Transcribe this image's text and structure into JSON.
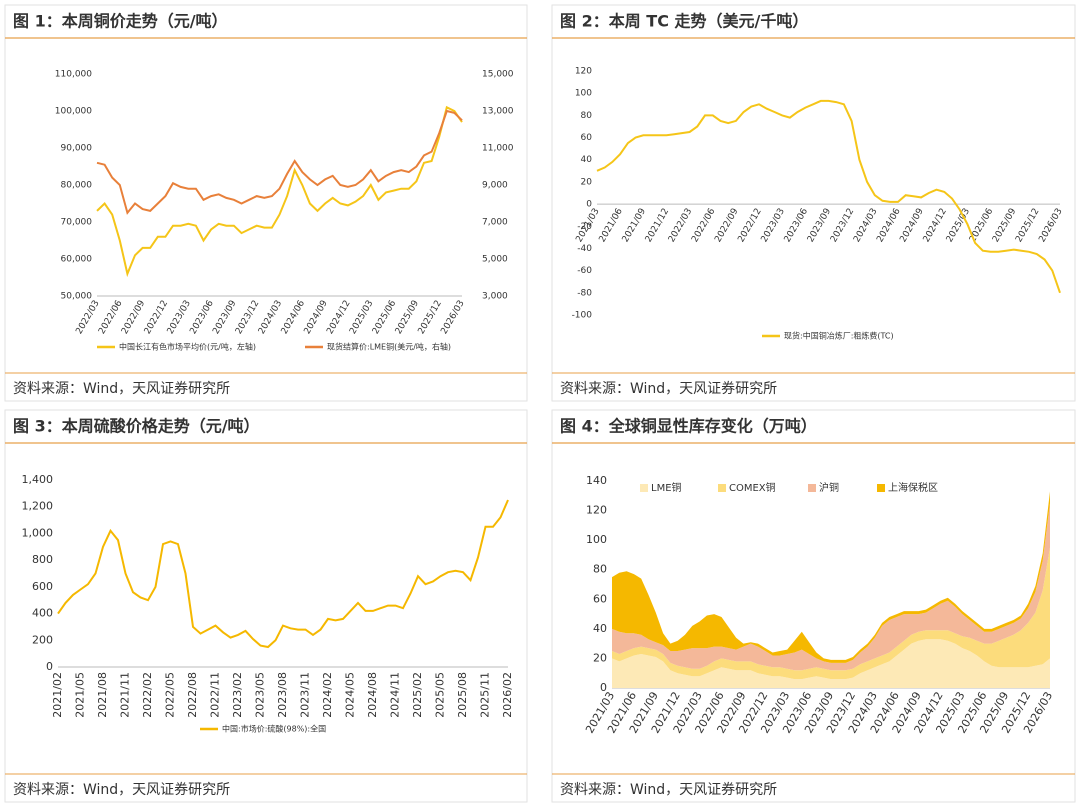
{
  "chart_data": [
    {
      "type": "line",
      "title": "图 1：本周铜价走势（元/吨）",
      "source": "资料来源：Wind，天风证券研究所",
      "categories": [
        "2022/03",
        null,
        null,
        "2022/06",
        null,
        null,
        "2022/09",
        null,
        null,
        "2022/12",
        null,
        null,
        "2023/03",
        null,
        null,
        "2023/06",
        null,
        null,
        "2023/09",
        null,
        null,
        "2023/12",
        null,
        null,
        "2024/03",
        null,
        null,
        "2024/06",
        null,
        null,
        "2024/09",
        null,
        null,
        "2024/12",
        null,
        null,
        "2025/03",
        null,
        null,
        "2025/06",
        null,
        null,
        "2025/09",
        null,
        null,
        "2025/12",
        null,
        null,
        "2026/03"
      ],
      "series": [
        {
          "name": "中国长江有色市场平均价(元/吨，左轴)",
          "color": "#f5c518",
          "values": [
            73000,
            75000,
            72000,
            65000,
            56000,
            61000,
            63000,
            63000,
            66000,
            66000,
            69000,
            69000,
            69500,
            69000,
            65000,
            68000,
            69500,
            69000,
            69000,
            67000,
            68000,
            69000,
            68500,
            68500,
            72000,
            77000,
            84000,
            80000,
            75000,
            73000,
            75000,
            76500,
            75000,
            74500,
            75500,
            77000,
            80000,
            76000,
            78000,
            78500,
            79000,
            79000,
            81000,
            86000,
            86500,
            93000,
            101000,
            100000,
            97000
          ]
        },
        {
          "name": "现货结算价:LME铜(美元/吨，右轴)",
          "color": "#e8803a",
          "axis": "y2",
          "values": [
            10200,
            10100,
            9400,
            9000,
            7500,
            8000,
            7700,
            7600,
            8000,
            8400,
            9100,
            8900,
            8800,
            8800,
            8200,
            8400,
            8500,
            8300,
            8200,
            8000,
            8200,
            8400,
            8300,
            8400,
            8800,
            9600,
            10300,
            9700,
            9300,
            9000,
            9300,
            9500,
            9000,
            8900,
            9000,
            9300,
            9800,
            9200,
            9500,
            9700,
            9800,
            9700,
            10000,
            10600,
            10800,
            11800,
            13000,
            12900,
            12500
          ]
        }
      ],
      "ylim": [
        50000,
        110000
      ],
      "yticks": [
        {
          "value": 50000,
          "label": "50,000"
        },
        {
          "value": 60000,
          "label": "60,000"
        },
        {
          "value": 70000,
          "label": "70,000"
        },
        {
          "value": 80000,
          "label": "80,000"
        },
        {
          "value": 90000,
          "label": "90,000"
        },
        {
          "value": 100000,
          "label": "100,000"
        },
        {
          "value": 110000,
          "label": "110,000"
        }
      ],
      "y2lim": [
        3000,
        15000
      ],
      "y2ticks": [
        {
          "value": 3000,
          "label": "3,000"
        },
        {
          "value": 5000,
          "label": "5,000"
        },
        {
          "value": 7000,
          "label": "7,000"
        },
        {
          "value": 9000,
          "label": "9,000"
        },
        {
          "value": 11000,
          "label": "11,000"
        },
        {
          "value": 13000,
          "label": "13,000"
        },
        {
          "value": 15000,
          "label": "15,000"
        }
      ],
      "grid": false
    },
    {
      "type": "line",
      "title": "图 2：本周 TC 走势（美元/千吨）",
      "source": "资料来源：Wind，天风证券研究所",
      "categories": [
        "2021/03",
        null,
        null,
        "2021/06",
        null,
        null,
        "2021/09",
        null,
        null,
        "2021/12",
        null,
        null,
        "2022/03",
        null,
        null,
        "2022/06",
        null,
        null,
        "2022/09",
        null,
        null,
        "2022/12",
        null,
        null,
        "2023/03",
        null,
        null,
        "2023/06",
        null,
        null,
        "2023/09",
        null,
        null,
        "2023/12",
        null,
        null,
        "2024/03",
        null,
        null,
        "2024/06",
        null,
        null,
        "2024/09",
        null,
        null,
        "2024/12",
        null,
        null,
        "2025/03",
        null,
        null,
        "2025/06",
        null,
        null,
        "2025/09",
        null,
        null,
        "2025/12",
        null,
        null,
        "2026/03"
      ],
      "series": [
        {
          "name": "现货:中国铜冶炼厂:粗炼费(TC)",
          "color": "#f5c518",
          "values": [
            30,
            33,
            38,
            45,
            55,
            60,
            62,
            62,
            62,
            62,
            63,
            64,
            65,
            70,
            80,
            80,
            75,
            73,
            75,
            83,
            88,
            90,
            86,
            83,
            80,
            78,
            83,
            87,
            90,
            93,
            93,
            92,
            90,
            75,
            40,
            20,
            8,
            3,
            2,
            2,
            8,
            7,
            6,
            10,
            13,
            11,
            5,
            -5,
            -18,
            -35,
            -42,
            -43,
            -43,
            -42,
            -41,
            -42,
            -43,
            -45,
            -50,
            -60,
            -80
          ]
        }
      ],
      "ylim": [
        -100,
        120
      ],
      "yticks": [
        -100,
        -80,
        -60,
        -40,
        -20,
        0,
        20,
        40,
        60,
        80,
        100,
        120
      ],
      "grid": false
    },
    {
      "type": "line",
      "title": "图 3：本周硫酸价格走势（元/吨）",
      "source": "资料来源：Wind，天风证券研究所",
      "categories": [
        "2021/02",
        null,
        null,
        "2021/05",
        null,
        null,
        "2021/08",
        null,
        null,
        "2021/11",
        null,
        null,
        "2022/02",
        null,
        null,
        "2022/05",
        null,
        null,
        "2022/08",
        null,
        null,
        "2022/11",
        null,
        null,
        "2023/02",
        null,
        null,
        "2023/05",
        null,
        null,
        "2023/08",
        null,
        null,
        "2023/11",
        null,
        null,
        "2024/02",
        null,
        null,
        "2024/05",
        null,
        null,
        "2024/08",
        null,
        null,
        "2024/11",
        null,
        null,
        "2025/02",
        null,
        null,
        "2025/05",
        null,
        null,
        "2025/08",
        null,
        null,
        "2025/11",
        null,
        null,
        "2026/02"
      ],
      "series": [
        {
          "name": "中国:市场价:硫酸(98%):全国",
          "color": "#f5b800",
          "values": [
            400,
            480,
            540,
            580,
            620,
            700,
            900,
            1020,
            950,
            700,
            560,
            520,
            500,
            600,
            920,
            940,
            920,
            700,
            300,
            250,
            280,
            310,
            260,
            220,
            240,
            270,
            210,
            160,
            150,
            200,
            310,
            290,
            280,
            280,
            240,
            280,
            360,
            350,
            360,
            420,
            480,
            420,
            420,
            440,
            460,
            460,
            440,
            550,
            680,
            620,
            640,
            680,
            710,
            720,
            710,
            650,
            820,
            1050,
            1050,
            1120,
            1250
          ]
        }
      ],
      "ylim": [
        0,
        1400
      ],
      "yticks": [
        0,
        200,
        400,
        600,
        800,
        {
          "value": 1000,
          "label": "1,000"
        },
        {
          "value": 1200,
          "label": "1,200"
        },
        {
          "value": 1400,
          "label": "1,400"
        }
      ],
      "grid": false
    },
    {
      "type": "area",
      "title": "图 4：全球铜显性库存变化（万吨）",
      "source": "资料来源：Wind，天风证券研究所",
      "categories": [
        "2021/03",
        null,
        null,
        "2021/06",
        null,
        null,
        "2021/09",
        null,
        null,
        "2021/12",
        null,
        null,
        "2022/03",
        null,
        null,
        "2022/06",
        null,
        null,
        "2022/09",
        null,
        null,
        "2022/12",
        null,
        null,
        "2023/03",
        null,
        null,
        "2023/06",
        null,
        null,
        "2023/09",
        null,
        null,
        "2023/12",
        null,
        null,
        "2024/03",
        null,
        null,
        "2024/06",
        null,
        null,
        "2024/09",
        null,
        null,
        "2024/12",
        null,
        null,
        "2025/03",
        null,
        null,
        "2025/06",
        null,
        null,
        "2025/09",
        null,
        null,
        "2025/12",
        null,
        null,
        "2026/03"
      ],
      "series": [
        {
          "name": "LME铜",
          "color": "#fde9b6",
          "values": [
            20,
            18,
            20,
            22,
            23,
            22,
            21,
            18,
            12,
            10,
            9,
            8,
            8,
            10,
            12,
            14,
            13,
            12,
            12,
            12,
            10,
            9,
            8,
            8,
            7,
            6,
            6,
            7,
            8,
            7,
            6,
            6,
            6,
            7,
            10,
            12,
            14,
            16,
            18,
            22,
            26,
            30,
            32,
            33,
            33,
            33,
            32,
            30,
            27,
            25,
            22,
            18,
            15,
            14,
            14,
            14,
            14,
            14,
            15,
            16,
            20
          ]
        },
        {
          "name": "COMEX铜",
          "color": "#fcdc7c",
          "values": [
            5,
            5,
            5,
            5,
            5,
            5,
            5,
            5,
            5,
            5,
            5,
            5,
            5,
            5,
            6,
            6,
            6,
            6,
            6,
            6,
            6,
            6,
            6,
            6,
            6,
            6,
            6,
            6,
            6,
            6,
            6,
            6,
            6,
            6,
            6,
            6,
            6,
            6,
            6,
            6,
            6,
            6,
            6,
            6,
            6,
            6,
            7,
            7,
            8,
            9,
            10,
            12,
            15,
            18,
            20,
            22,
            25,
            30,
            36,
            50,
            75
          ]
        },
        {
          "name": "沪铜",
          "color": "#f4b899",
          "values": [
            15,
            15,
            12,
            10,
            8,
            6,
            5,
            6,
            8,
            10,
            12,
            14,
            14,
            12,
            10,
            8,
            8,
            8,
            10,
            12,
            12,
            10,
            8,
            8,
            10,
            12,
            14,
            10,
            6,
            5,
            5,
            5,
            5,
            6,
            8,
            10,
            14,
            20,
            22,
            20,
            18,
            14,
            12,
            12,
            15,
            18,
            20,
            18,
            15,
            12,
            10,
            8,
            8,
            8,
            8,
            8,
            8,
            10,
            14,
            20,
            30
          ]
        },
        {
          "name": "上海保税区",
          "color": "#f5b800",
          "values": [
            35,
            40,
            42,
            40,
            38,
            30,
            20,
            8,
            5,
            7,
            10,
            15,
            18,
            22,
            22,
            20,
            14,
            8,
            2,
            1,
            2,
            2,
            2,
            3,
            3,
            8,
            12,
            8,
            4,
            2,
            2,
            2,
            2,
            2,
            2,
            2,
            2,
            2,
            2,
            2,
            2,
            2,
            2,
            2,
            2,
            2,
            2,
            2,
            2,
            2,
            2,
            2,
            2,
            2,
            2,
            2,
            2,
            3,
            4,
            5,
            8
          ]
        }
      ],
      "ylim": [
        0,
        140
      ],
      "yticks": [
        0,
        20,
        40,
        60,
        80,
        100,
        120,
        140
      ],
      "grid": false
    }
  ]
}
